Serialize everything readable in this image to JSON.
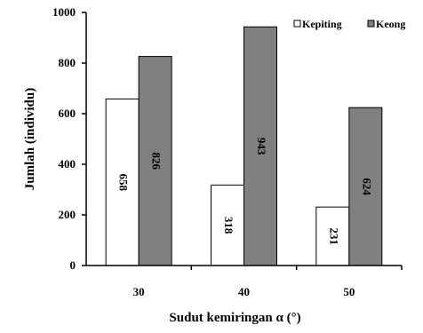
{
  "chart_data": {
    "type": "bar",
    "categories": [
      "30",
      "40",
      "50"
    ],
    "series": [
      {
        "name": "Kepiting",
        "values": [
          658,
          318,
          231
        ],
        "color": "#ffffff",
        "labels": [
          "658",
          "318",
          "231"
        ]
      },
      {
        "name": "Keong",
        "values": [
          826,
          943,
          624
        ],
        "color": "#808080",
        "labels": [
          "826",
          "943",
          "624"
        ]
      }
    ],
    "xlabel": "Sudut kemiringan α (°)",
    "ylabel": "Jumlah (individu)",
    "ylim": [
      0,
      1000
    ],
    "yticks": [
      "0",
      "200",
      "400",
      "600",
      "800",
      "1000"
    ],
    "grid": false,
    "legend_position": "top-right"
  }
}
